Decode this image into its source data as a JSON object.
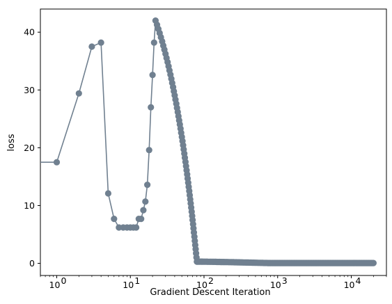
{
  "chart_data": {
    "type": "line",
    "xlabel": "Gradient Descent Iteration",
    "ylabel": "loss",
    "x_scale": "log",
    "xlim": [
      0.6,
      30000
    ],
    "ylim": [
      -2.1,
      44
    ],
    "x_ticks": [
      {
        "value": 1,
        "base": "10",
        "exp": "0"
      },
      {
        "value": 10,
        "base": "10",
        "exp": "1"
      },
      {
        "value": 100,
        "base": "10",
        "exp": "2"
      },
      {
        "value": 1000,
        "base": "10",
        "exp": "3"
      },
      {
        "value": 10000,
        "base": "10",
        "exp": "4"
      }
    ],
    "y_ticks": [
      0,
      10,
      20,
      30,
      40
    ],
    "grid": false,
    "colors": {
      "series": "#708090"
    },
    "series": [
      {
        "x": [
          0,
          1,
          2,
          3,
          4,
          5,
          6,
          7,
          8,
          9,
          10,
          11,
          12,
          13,
          14,
          15,
          16,
          17,
          18,
          19,
          20,
          21,
          22
        ],
        "y": [
          17.5,
          17.5,
          29.4,
          37.5,
          38.2,
          12.1,
          7.7,
          6.2,
          6.2,
          6.2,
          6.2,
          6.2,
          6.2,
          7.7,
          7.7,
          9.2,
          10.7,
          13.6,
          19.6,
          27.0,
          32.6,
          38.2,
          42.0
        ]
      }
    ]
  }
}
